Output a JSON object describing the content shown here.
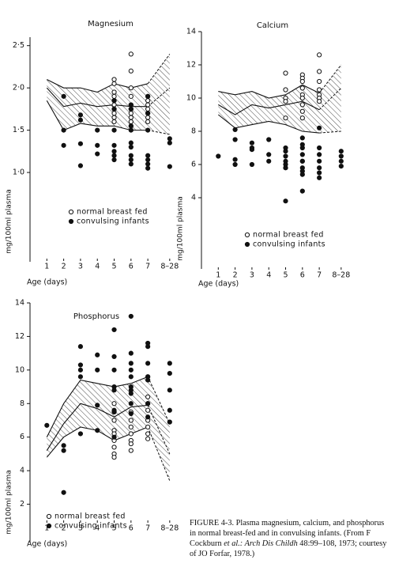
{
  "chart_data": [
    {
      "type": "scatter",
      "title": "Magnesium",
      "ylabel": "mg/100ml plasma",
      "xlabel": "Age (days)",
      "xlim": [
        0,
        9.2
      ],
      "xticks": [
        1,
        2,
        3,
        4,
        5,
        6,
        7,
        {
          "value": 8.3,
          "label": "8–28"
        }
      ],
      "ylim": [
        0,
        2.6
      ],
      "yticks": [
        {
          "value": 1.0,
          "label": "1·0"
        },
        {
          "value": 1.5,
          "label": "1·5"
        },
        {
          "value": 2.0,
          "label": "2·0"
        },
        {
          "value": 2.5,
          "label": "2·5"
        }
      ],
      "band": {
        "upper": [
          2.1,
          2.0,
          2.0,
          1.95,
          2.05,
          2.0,
          2.05,
          2.4
        ],
        "mid": [
          2.0,
          1.78,
          1.82,
          1.78,
          1.8,
          1.78,
          1.78,
          2.0
        ],
        "lower": [
          1.85,
          1.5,
          1.58,
          1.55,
          1.55,
          1.5,
          1.5,
          1.45
        ]
      },
      "series": [
        {
          "name": "normal breast fed",
          "color": "#111",
          "marker": "open",
          "x": [
            5,
            5,
            5,
            5,
            5,
            5,
            5,
            5,
            5,
            5,
            6,
            6,
            6,
            6,
            6,
            6,
            6,
            6,
            6,
            6,
            7,
            7,
            7,
            7,
            7,
            7,
            7
          ],
          "values": [
            2.1,
            2.05,
            1.95,
            1.9,
            1.85,
            1.8,
            1.75,
            1.7,
            1.65,
            1.6,
            2.4,
            2.2,
            2.0,
            1.9,
            1.8,
            1.75,
            1.7,
            1.65,
            1.6,
            1.55,
            1.9,
            1.85,
            1.8,
            1.75,
            1.7,
            1.65,
            1.6
          ]
        },
        {
          "name": "convulsing infants",
          "color": "#111",
          "marker": "filled",
          "x": [
            2,
            2,
            2,
            3,
            3,
            3,
            3,
            4,
            4,
            4,
            5,
            5,
            5,
            5,
            5,
            5,
            5,
            6,
            6,
            6,
            6,
            6,
            6,
            6,
            6,
            6,
            7,
            7,
            7,
            7,
            7,
            7,
            7,
            8.3,
            8.3,
            8.3
          ],
          "values": [
            1.9,
            1.5,
            1.32,
            1.68,
            1.62,
            1.34,
            1.08,
            1.5,
            1.32,
            1.22,
            1.85,
            1.75,
            1.5,
            1.32,
            1.25,
            1.2,
            1.15,
            1.8,
            1.75,
            1.55,
            1.5,
            1.35,
            1.3,
            1.2,
            1.15,
            1.1,
            1.9,
            1.7,
            1.5,
            1.2,
            1.15,
            1.1,
            1.05,
            1.4,
            1.35,
            1.07
          ]
        }
      ]
    },
    {
      "type": "scatter",
      "title": "Calcium",
      "ylabel": "mg/100ml plasma",
      "xlabel": "Age (days)",
      "xlim": [
        0,
        9.2
      ],
      "xticks": [
        1,
        2,
        3,
        4,
        5,
        6,
        7,
        {
          "value": 8.3,
          "label": "8–28"
        }
      ],
      "ylim": [
        0,
        14
      ],
      "yticks": [
        4,
        6,
        8,
        10,
        12,
        14
      ],
      "band": {
        "upper": [
          10.4,
          10.2,
          10.4,
          10.0,
          10.2,
          10.8,
          10.3,
          12.0
        ],
        "mid": [
          9.6,
          9.0,
          9.6,
          9.4,
          9.6,
          9.8,
          9.3,
          10.6
        ],
        "lower": [
          9.0,
          8.2,
          8.4,
          8.6,
          8.4,
          8.0,
          7.9,
          8.0
        ]
      },
      "series": [
        {
          "name": "normal breast fed",
          "color": "#111",
          "marker": "open",
          "x": [
            5,
            5,
            5,
            5,
            5,
            5,
            6,
            6,
            6,
            6,
            6,
            6,
            6,
            6,
            6,
            6,
            7,
            7,
            7,
            7,
            7,
            7,
            7
          ],
          "values": [
            11.5,
            10.5,
            10.0,
            9.8,
            8.8,
            5.8,
            11.4,
            11.2,
            11.0,
            10.6,
            10.2,
            10.0,
            9.6,
            9.2,
            8.8,
            6.2,
            12.6,
            11.6,
            11.0,
            10.5,
            10.2,
            10.0,
            9.8
          ]
        },
        {
          "name": "convulsing infants",
          "color": "#111",
          "marker": "filled",
          "x": [
            1,
            2,
            2,
            2,
            2,
            3,
            3,
            3,
            3,
            4,
            4,
            4,
            5,
            5,
            5,
            5,
            5,
            5,
            5,
            6,
            6,
            6,
            6,
            6,
            6,
            6,
            6,
            6,
            7,
            7,
            7,
            7,
            7,
            7,
            7,
            8.3,
            8.3,
            8.3,
            8.3
          ],
          "values": [
            6.5,
            8.1,
            7.5,
            6.3,
            6.0,
            7.3,
            7.0,
            6.9,
            6.0,
            7.5,
            6.6,
            6.2,
            7.0,
            6.8,
            6.5,
            6.2,
            6.0,
            5.8,
            3.8,
            7.6,
            7.2,
            7.0,
            6.6,
            6.2,
            5.8,
            5.6,
            5.4,
            4.4,
            8.2,
            7.0,
            6.6,
            6.2,
            5.8,
            5.5,
            5.2,
            6.8,
            6.5,
            6.2,
            5.9
          ]
        }
      ]
    },
    {
      "type": "scatter",
      "title": "Phosphorus",
      "ylabel": "mg/100ml plasma",
      "xlabel": "Age (days)",
      "xlim": [
        0,
        9.2
      ],
      "xticks": [
        1,
        2,
        3,
        4,
        5,
        6,
        7,
        {
          "value": 8.3,
          "label": "8–28"
        }
      ],
      "ylim": [
        0,
        14
      ],
      "yticks": [
        2,
        4,
        6,
        8,
        10,
        12,
        14
      ],
      "band": {
        "upper": [
          6.0,
          8.0,
          9.4,
          9.2,
          9.0,
          9.2,
          9.6,
          6.8
        ],
        "mid": [
          5.2,
          6.8,
          8.0,
          7.7,
          7.2,
          7.8,
          7.9,
          5.0
        ],
        "lower": [
          4.8,
          6.0,
          6.6,
          6.4,
          5.8,
          6.2,
          6.6,
          3.4
        ]
      },
      "series": [
        {
          "name": "normal breast fed",
          "color": "#111",
          "marker": "open",
          "x": [
            5,
            5,
            5,
            5,
            5,
            5,
            5,
            5,
            5,
            6,
            6,
            6,
            6,
            6,
            6,
            6,
            7,
            7,
            7,
            7,
            7,
            7,
            7,
            7
          ],
          "values": [
            8.0,
            7.5,
            7.0,
            6.4,
            6.2,
            5.8,
            5.4,
            5.0,
            4.8,
            7.5,
            7.0,
            6.6,
            6.2,
            5.8,
            5.6,
            5.2,
            9.6,
            8.4,
            8.0,
            7.6,
            7.0,
            6.6,
            6.2,
            5.9
          ]
        },
        {
          "name": "convulsing infants",
          "color": "#111",
          "marker": "filled",
          "x": [
            1,
            2,
            2,
            2,
            3,
            3,
            3,
            3,
            3,
            4,
            4,
            4,
            4,
            5,
            5,
            5,
            5,
            5,
            5,
            5,
            5,
            6,
            6,
            6,
            6,
            6,
            6,
            6,
            6,
            6,
            6,
            7,
            7,
            7,
            7,
            7,
            7,
            7,
            8.3,
            8.3,
            8.3,
            8.3,
            8.3
          ],
          "values": [
            6.7,
            5.5,
            5.2,
            2.7,
            11.4,
            10.3,
            10.0,
            9.6,
            6.2,
            10.9,
            10.0,
            7.9,
            6.4,
            12.4,
            10.8,
            10.0,
            9.0,
            8.8,
            7.6,
            7.5,
            6.0,
            13.2,
            11.0,
            10.4,
            10.0,
            9.6,
            9.0,
            8.8,
            8.6,
            8.0,
            7.4,
            11.6,
            11.4,
            10.4,
            9.6,
            9.4,
            8.0,
            7.2,
            10.4,
            9.8,
            8.8,
            7.6,
            6.9
          ]
        }
      ]
    }
  ],
  "caption": [
    "FIGURE 4-3.",
    " Plasma magnesium, calcium, and phosphorus in normal breast-fed and in convulsing infants. (From F Cockburn ",
    "et al.: Arch Dis Childh",
    " 48:99–108, 1973; courtesy of JO Forfar, 1978.)"
  ]
}
